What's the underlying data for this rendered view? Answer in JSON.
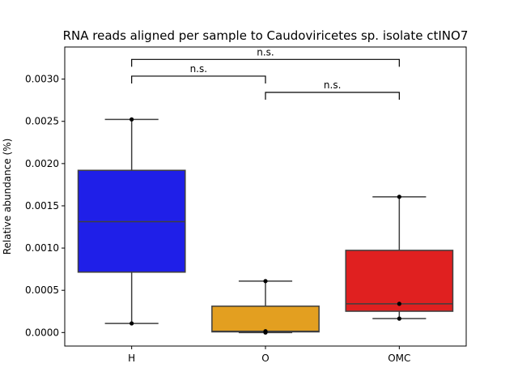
{
  "chart_data": {
    "type": "box",
    "title": "RNA reads aligned per sample to Caudoviricetes sp. isolate ctINO7",
    "xlabel": "",
    "ylabel": "Relative abundance (%)",
    "ylim": [
      -0.00016,
      0.00338
    ],
    "yticks": [
      "0.0000",
      "0.0005",
      "0.0010",
      "0.0015",
      "0.0020",
      "0.0025",
      "0.0030"
    ],
    "categories": [
      "H",
      "O",
      "OMC"
    ],
    "boxes": [
      {
        "category": "H",
        "color": "#1f1fe8",
        "whisker_low": 0.000108,
        "q1": 0.000715,
        "median": 0.001313,
        "q3": 0.00192,
        "whisker_high": 0.002523
      },
      {
        "category": "O",
        "color": "#e39f20",
        "whisker_low": 0.0,
        "q1": 8e-06,
        "median": 1.5e-05,
        "q3": 0.000312,
        "whisker_high": 0.000609
      },
      {
        "category": "OMC",
        "color": "#e02020",
        "whisker_low": 0.000165,
        "q1": 0.000252,
        "median": 0.00034,
        "q3": 0.000973,
        "whisker_high": 0.001607
      }
    ],
    "points": [
      {
        "category": "H",
        "values": [
          0.002523,
          0.000108
        ]
      },
      {
        "category": "O",
        "values": [
          0.000609,
          0.0,
          1.5e-05
        ]
      },
      {
        "category": "OMC",
        "values": [
          0.001607,
          0.00034,
          0.000165
        ]
      }
    ],
    "significance": [
      {
        "from": "H",
        "to": "OMC",
        "label": "n.s.",
        "y": 0.003233,
        "tick": 8.7e-05
      },
      {
        "from": "H",
        "to": "O",
        "label": "n.s.",
        "y": 0.003035,
        "tick": 8.7e-05
      },
      {
        "from": "O",
        "to": "OMC",
        "label": "n.s.",
        "y": 0.002843,
        "tick": 8.7e-05
      }
    ],
    "grid": false,
    "legend": "none"
  }
}
